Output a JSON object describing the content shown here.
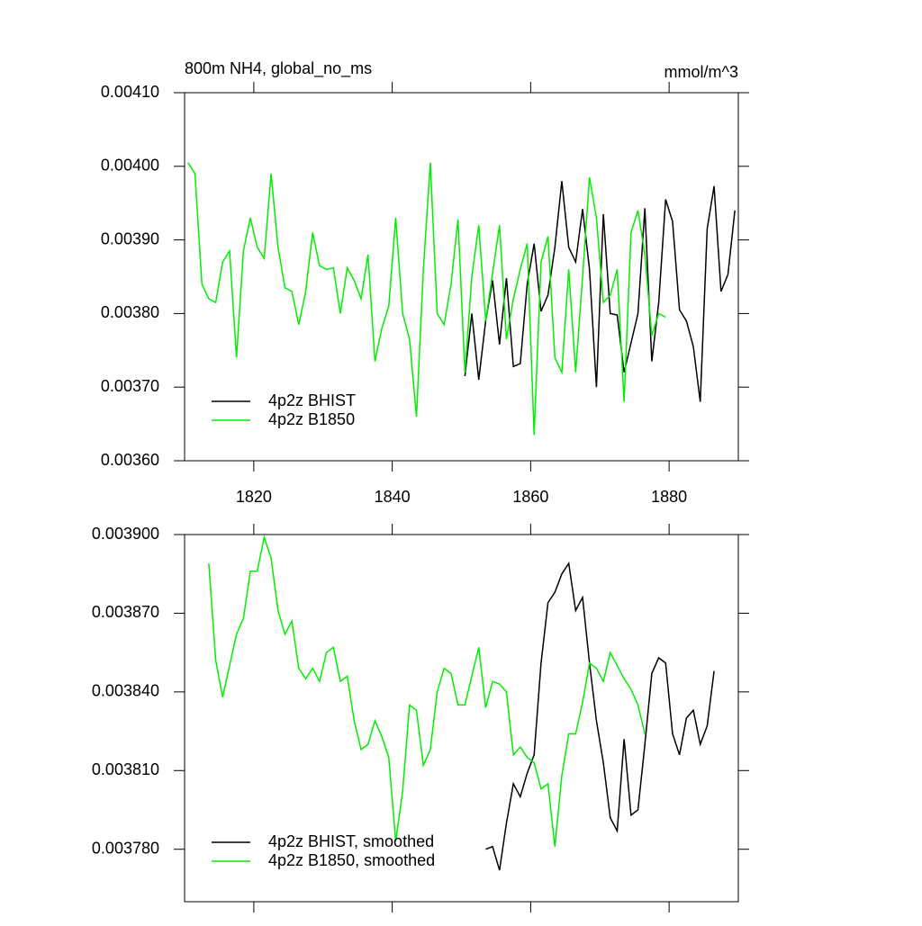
{
  "chart_data": [
    {
      "type": "line",
      "title": "800m NH4, global_no_ms",
      "subtitle": "mmol/m^3",
      "xlim": [
        1810,
        1890
      ],
      "xticks": [
        1820,
        1840,
        1860,
        1880
      ],
      "ylim": [
        0.0036,
        0.0041
      ],
      "yticks": [
        {
          "value": 0.0036,
          "label": "0.00360"
        },
        {
          "value": 0.0037,
          "label": "0.00370"
        },
        {
          "value": 0.0038,
          "label": "0.00380"
        },
        {
          "value": 0.0039,
          "label": "0.00390"
        },
        {
          "value": 0.004,
          "label": "0.00400"
        },
        {
          "value": 0.0041,
          "label": "0.00410"
        }
      ],
      "legend": "lower left",
      "series": [
        {
          "name": "4p2z BHIST",
          "color": "#000000",
          "x": [
            1850.5,
            1851.5,
            1852.5,
            1853.5,
            1854.5,
            1855.5,
            1856.5,
            1857.5,
            1858.5,
            1859.5,
            1860.5,
            1861.5,
            1862.5,
            1863.5,
            1864.5,
            1865.5,
            1866.5,
            1867.5,
            1868.5,
            1869.5,
            1870.5,
            1871.5,
            1872.5,
            1873.5,
            1874.5,
            1875.5,
            1876.5,
            1877.5,
            1878.5,
            1879.5,
            1880.5,
            1881.5,
            1882.5,
            1883.5,
            1884.5,
            1885.5,
            1886.5,
            1887.5,
            1888.5,
            1889.5
          ],
          "values": [
            0.003715,
            0.0038,
            0.00371,
            0.00379,
            0.003845,
            0.003758,
            0.003848,
            0.003728,
            0.003732,
            0.00384,
            0.003895,
            0.003803,
            0.003825,
            0.00389,
            0.00398,
            0.00389,
            0.00387,
            0.003942,
            0.00386,
            0.0037,
            0.003935,
            0.0038,
            0.003798,
            0.00372,
            0.00376,
            0.0038,
            0.003943,
            0.003735,
            0.003815,
            0.003955,
            0.003925,
            0.003805,
            0.00379,
            0.003755,
            0.00368,
            0.003915,
            0.003973,
            0.00383,
            0.003853,
            0.00394
          ]
        },
        {
          "name": "4p2z B1850",
          "color": "#00ee00",
          "x": [
            1810.5,
            1811.5,
            1812.5,
            1813.5,
            1814.5,
            1815.5,
            1816.5,
            1817.5,
            1818.5,
            1819.5,
            1820.5,
            1821.5,
            1822.5,
            1823.5,
            1824.5,
            1825.5,
            1826.5,
            1827.5,
            1828.5,
            1829.5,
            1830.5,
            1831.5,
            1832.5,
            1833.5,
            1834.5,
            1835.5,
            1836.5,
            1837.5,
            1838.5,
            1839.5,
            1840.5,
            1841.5,
            1842.5,
            1843.5,
            1844.5,
            1845.5,
            1846.5,
            1847.5,
            1848.5,
            1849.5,
            1850.5,
            1851.5,
            1852.5,
            1853.5,
            1854.5,
            1855.5,
            1856.5,
            1857.5,
            1858.5,
            1859.5,
            1860.5,
            1861.5,
            1862.5,
            1863.5,
            1864.5,
            1865.5,
            1866.5,
            1867.5,
            1868.5,
            1869.5,
            1870.5,
            1871.5,
            1872.5,
            1873.5,
            1874.5,
            1875.5,
            1876.5,
            1877.5,
            1878.5,
            1879.5
          ],
          "values": [
            0.004005,
            0.00399,
            0.00384,
            0.00382,
            0.003815,
            0.00387,
            0.003885,
            0.00374,
            0.003885,
            0.00393,
            0.00389,
            0.003875,
            0.00399,
            0.00389,
            0.003835,
            0.00383,
            0.003785,
            0.00383,
            0.00391,
            0.003865,
            0.00386,
            0.003862,
            0.0038,
            0.003862,
            0.003845,
            0.00382,
            0.00388,
            0.003735,
            0.00378,
            0.00381,
            0.00393,
            0.0038,
            0.003765,
            0.00366,
            0.00386,
            0.004005,
            0.0038,
            0.003785,
            0.00384,
            0.003928,
            0.00372,
            0.00385,
            0.00392,
            0.00379,
            0.003855,
            0.00392,
            0.003765,
            0.00382,
            0.00386,
            0.003895,
            0.003635,
            0.00387,
            0.003905,
            0.00374,
            0.00372,
            0.00386,
            0.00372,
            0.00385,
            0.003985,
            0.00393,
            0.003815,
            0.003825,
            0.00386,
            0.00368,
            0.00391,
            0.00394,
            0.00388,
            0.00377,
            0.0038,
            0.003795
          ]
        }
      ]
    },
    {
      "type": "line",
      "xlim": [
        1810,
        1890
      ],
      "xticks": [
        1820,
        1840,
        1860,
        1880
      ],
      "xtick_labels": false,
      "ylim": [
        0.00376,
        0.0039
      ],
      "yticks": [
        {
          "value": 0.00378,
          "label": "0.003780"
        },
        {
          "value": 0.00381,
          "label": "0.003810"
        },
        {
          "value": 0.00384,
          "label": "0.003840"
        },
        {
          "value": 0.00387,
          "label": "0.003870"
        },
        {
          "value": 0.0039,
          "label": "0.003900"
        }
      ],
      "legend": "lower left",
      "series": [
        {
          "name": "4p2z BHIST, smoothed",
          "color": "#000000",
          "x": [
            1853.5,
            1854.5,
            1855.5,
            1856.5,
            1857.5,
            1858.5,
            1859.5,
            1860.5,
            1861.5,
            1862.5,
            1863.5,
            1864.5,
            1865.5,
            1866.5,
            1867.5,
            1868.5,
            1869.5,
            1870.5,
            1871.5,
            1872.5,
            1873.5,
            1874.5,
            1875.5,
            1876.5,
            1877.5,
            1878.5,
            1879.5,
            1880.5,
            1881.5,
            1882.5,
            1883.5,
            1884.5,
            1885.5,
            1886.5
          ],
          "values": [
            0.00378,
            0.003781,
            0.003772,
            0.00379,
            0.003805,
            0.0038,
            0.003809,
            0.003816,
            0.003851,
            0.003874,
            0.003878,
            0.003885,
            0.003889,
            0.003871,
            0.003876,
            0.003851,
            0.003829,
            0.003813,
            0.003792,
            0.003787,
            0.003822,
            0.003793,
            0.003795,
            0.00382,
            0.003847,
            0.003853,
            0.003851,
            0.003824,
            0.003816,
            0.00383,
            0.003833,
            0.00382,
            0.003827,
            0.003848
          ]
        },
        {
          "name": "4p2z B1850, smoothed",
          "color": "#00ee00",
          "x": [
            1813.5,
            1814.5,
            1815.5,
            1816.5,
            1817.5,
            1818.5,
            1819.5,
            1820.5,
            1821.5,
            1822.5,
            1823.5,
            1824.5,
            1825.5,
            1826.5,
            1827.5,
            1828.5,
            1829.5,
            1830.5,
            1831.5,
            1832.5,
            1833.5,
            1834.5,
            1835.5,
            1836.5,
            1837.5,
            1838.5,
            1839.5,
            1840.5,
            1841.5,
            1842.5,
            1843.5,
            1844.5,
            1845.5,
            1846.5,
            1847.5,
            1848.5,
            1849.5,
            1850.5,
            1851.5,
            1852.5,
            1853.5,
            1854.5,
            1855.5,
            1856.5,
            1857.5,
            1858.5,
            1859.5,
            1860.5,
            1861.5,
            1862.5,
            1863.5,
            1864.5,
            1865.5,
            1866.5,
            1867.5,
            1868.5,
            1869.5,
            1870.5,
            1871.5,
            1872.5,
            1873.5,
            1874.5,
            1875.5,
            1876.5
          ],
          "values": [
            0.003889,
            0.003852,
            0.003838,
            0.00385,
            0.003862,
            0.003868,
            0.003886,
            0.003886,
            0.003899,
            0.003891,
            0.003871,
            0.003862,
            0.003867,
            0.003849,
            0.003845,
            0.003849,
            0.003844,
            0.003855,
            0.003857,
            0.003844,
            0.003846,
            0.003829,
            0.003818,
            0.00382,
            0.003829,
            0.003823,
            0.003815,
            0.003783,
            0.003802,
            0.003835,
            0.003833,
            0.003812,
            0.003818,
            0.00384,
            0.003849,
            0.003847,
            0.003835,
            0.003835,
            0.003846,
            0.003857,
            0.003834,
            0.003844,
            0.003843,
            0.00384,
            0.003816,
            0.003819,
            0.003815,
            0.003813,
            0.003803,
            0.003805,
            0.003781,
            0.003808,
            0.003824,
            0.003824,
            0.003836,
            0.003851,
            0.003849,
            0.003844,
            0.003855,
            0.00385,
            0.003845,
            0.003841,
            0.003835,
            0.003824
          ]
        }
      ]
    }
  ]
}
